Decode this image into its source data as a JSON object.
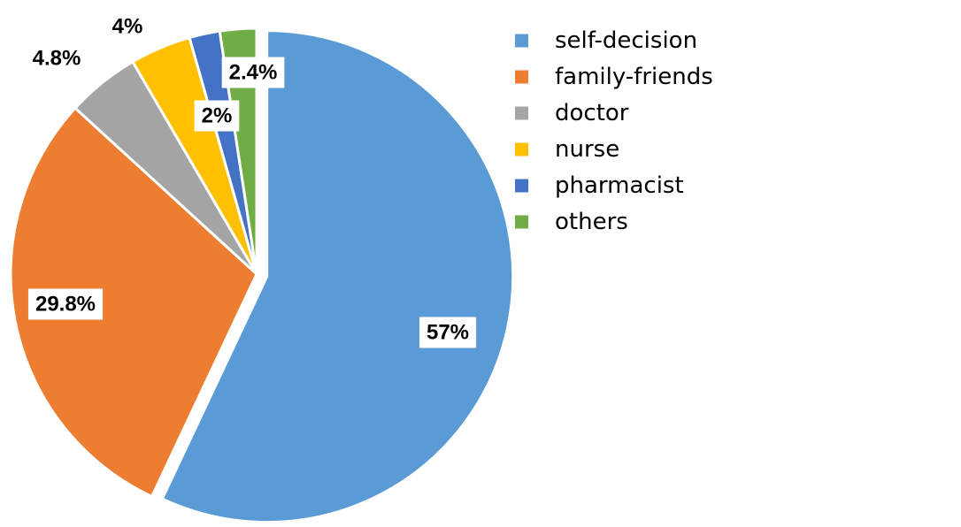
{
  "chart_data": {
    "type": "pie",
    "categories": [
      "self-decision",
      "family-friends",
      "doctor",
      "nurse",
      "pharmacist",
      "others"
    ],
    "values": [
      57,
      29.8,
      4.8,
      4,
      2,
      2.4
    ],
    "data_labels": [
      "57%",
      "29.8%",
      "4.8%",
      "4%",
      "2%",
      "2.4%"
    ],
    "colors": [
      "#5B9BD5",
      "#ED7D31",
      "#A5A5A5",
      "#FFC000",
      "#4472C4",
      "#70AD47"
    ],
    "exploded": "self-decision",
    "legend": {
      "placement": "right",
      "entries": [
        "self-decision",
        "family-friends",
        "doctor",
        "nurse",
        "pharmacist",
        "others"
      ]
    },
    "title": "",
    "xlabel": "",
    "ylabel": ""
  }
}
